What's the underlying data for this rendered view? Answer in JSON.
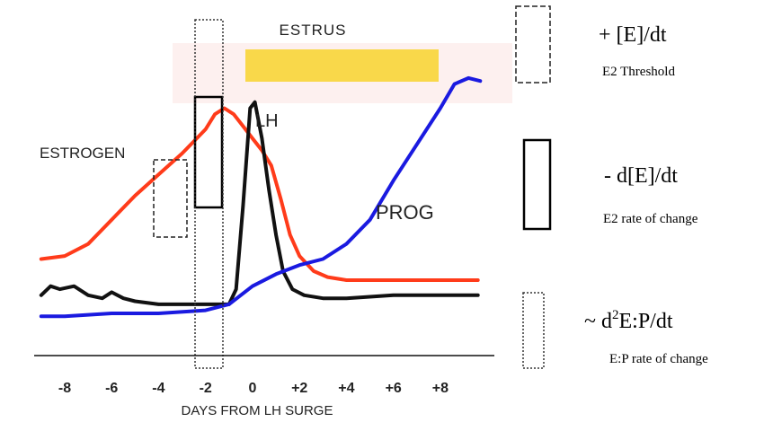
{
  "chart_data": {
    "type": "line",
    "xlabel": "DAYS FROM LH SURGE",
    "xlim": [
      -9.3,
      10.3
    ],
    "ylim": [
      0,
      100
    ],
    "x_ticks": [
      {
        "value": -8,
        "label": "-8"
      },
      {
        "value": -6,
        "label": "-6"
      },
      {
        "value": -4,
        "label": "-4"
      },
      {
        "value": -2,
        "label": "-2"
      },
      {
        "value": 0,
        "label": "0"
      },
      {
        "value": 2,
        "label": "+2"
      },
      {
        "value": 4,
        "label": "+4"
      },
      {
        "value": 6,
        "label": "+6"
      },
      {
        "value": 8,
        "label": "+8"
      }
    ],
    "grid": false,
    "series": [
      {
        "name": "ESTROGEN",
        "color": "#ff3b1a",
        "points": [
          [
            -9,
            32
          ],
          [
            -8,
            33
          ],
          [
            -7,
            37
          ],
          [
            -6,
            45
          ],
          [
            -5,
            53
          ],
          [
            -4,
            60
          ],
          [
            -3,
            67
          ],
          [
            -2,
            75
          ],
          [
            -1.6,
            80
          ],
          [
            -1.2,
            82
          ],
          [
            -0.8,
            80
          ],
          [
            -0.4,
            76
          ],
          [
            0,
            72
          ],
          [
            0.4,
            68
          ],
          [
            0.8,
            63
          ],
          [
            1.2,
            52
          ],
          [
            1.6,
            40
          ],
          [
            2,
            33
          ],
          [
            2.6,
            28
          ],
          [
            3.2,
            26
          ],
          [
            4,
            25
          ],
          [
            6,
            25
          ],
          [
            8,
            25
          ],
          [
            9.6,
            25
          ]
        ]
      },
      {
        "name": "LH",
        "color": "#111111",
        "points": [
          [
            -9,
            20
          ],
          [
            -8.6,
            23
          ],
          [
            -8.2,
            22
          ],
          [
            -7.6,
            23
          ],
          [
            -7,
            20
          ],
          [
            -6.4,
            19
          ],
          [
            -6,
            21
          ],
          [
            -5.5,
            19
          ],
          [
            -5,
            18
          ],
          [
            -4,
            17
          ],
          [
            -3,
            17
          ],
          [
            -2,
            17
          ],
          [
            -1,
            17
          ],
          [
            -0.7,
            22
          ],
          [
            -0.4,
            50
          ],
          [
            -0.1,
            82
          ],
          [
            0.1,
            84
          ],
          [
            0.4,
            72
          ],
          [
            0.7,
            55
          ],
          [
            1,
            40
          ],
          [
            1.3,
            28
          ],
          [
            1.7,
            22
          ],
          [
            2.2,
            20
          ],
          [
            3,
            19
          ],
          [
            4,
            19
          ],
          [
            6,
            20
          ],
          [
            8,
            20
          ],
          [
            9.6,
            20
          ]
        ]
      },
      {
        "name": "PROG",
        "color": "#1a1ae0",
        "points": [
          [
            -9,
            13
          ],
          [
            -8,
            13
          ],
          [
            -6,
            14
          ],
          [
            -4,
            14
          ],
          [
            -2,
            15
          ],
          [
            -1,
            17
          ],
          [
            0,
            23
          ],
          [
            1,
            27
          ],
          [
            2,
            30
          ],
          [
            3,
            32
          ],
          [
            4,
            37
          ],
          [
            5,
            45
          ],
          [
            6,
            58
          ],
          [
            7,
            70
          ],
          [
            8,
            82
          ],
          [
            8.6,
            90
          ],
          [
            9.2,
            92
          ],
          [
            9.7,
            91
          ]
        ]
      }
    ],
    "annotations": {
      "estrus": "ESTRUS",
      "lh": "LH",
      "estrogen": "ESTROGEN",
      "prog": "PROG"
    }
  },
  "legend": {
    "dashed": {
      "formula": "+ [E]/dt",
      "caption": "E2 Threshold"
    },
    "solid": {
      "formula": "- d[E]/dt",
      "caption": "E2 rate of change"
    },
    "dotted": {
      "formula_prefix": "~ d",
      "formula_sup": "2",
      "formula_rest": "E:P/dt",
      "caption": "E:P rate of change"
    }
  },
  "colors": {
    "estrus_band": "#fdf0ef",
    "estrus_bar": "#f9d84a"
  }
}
